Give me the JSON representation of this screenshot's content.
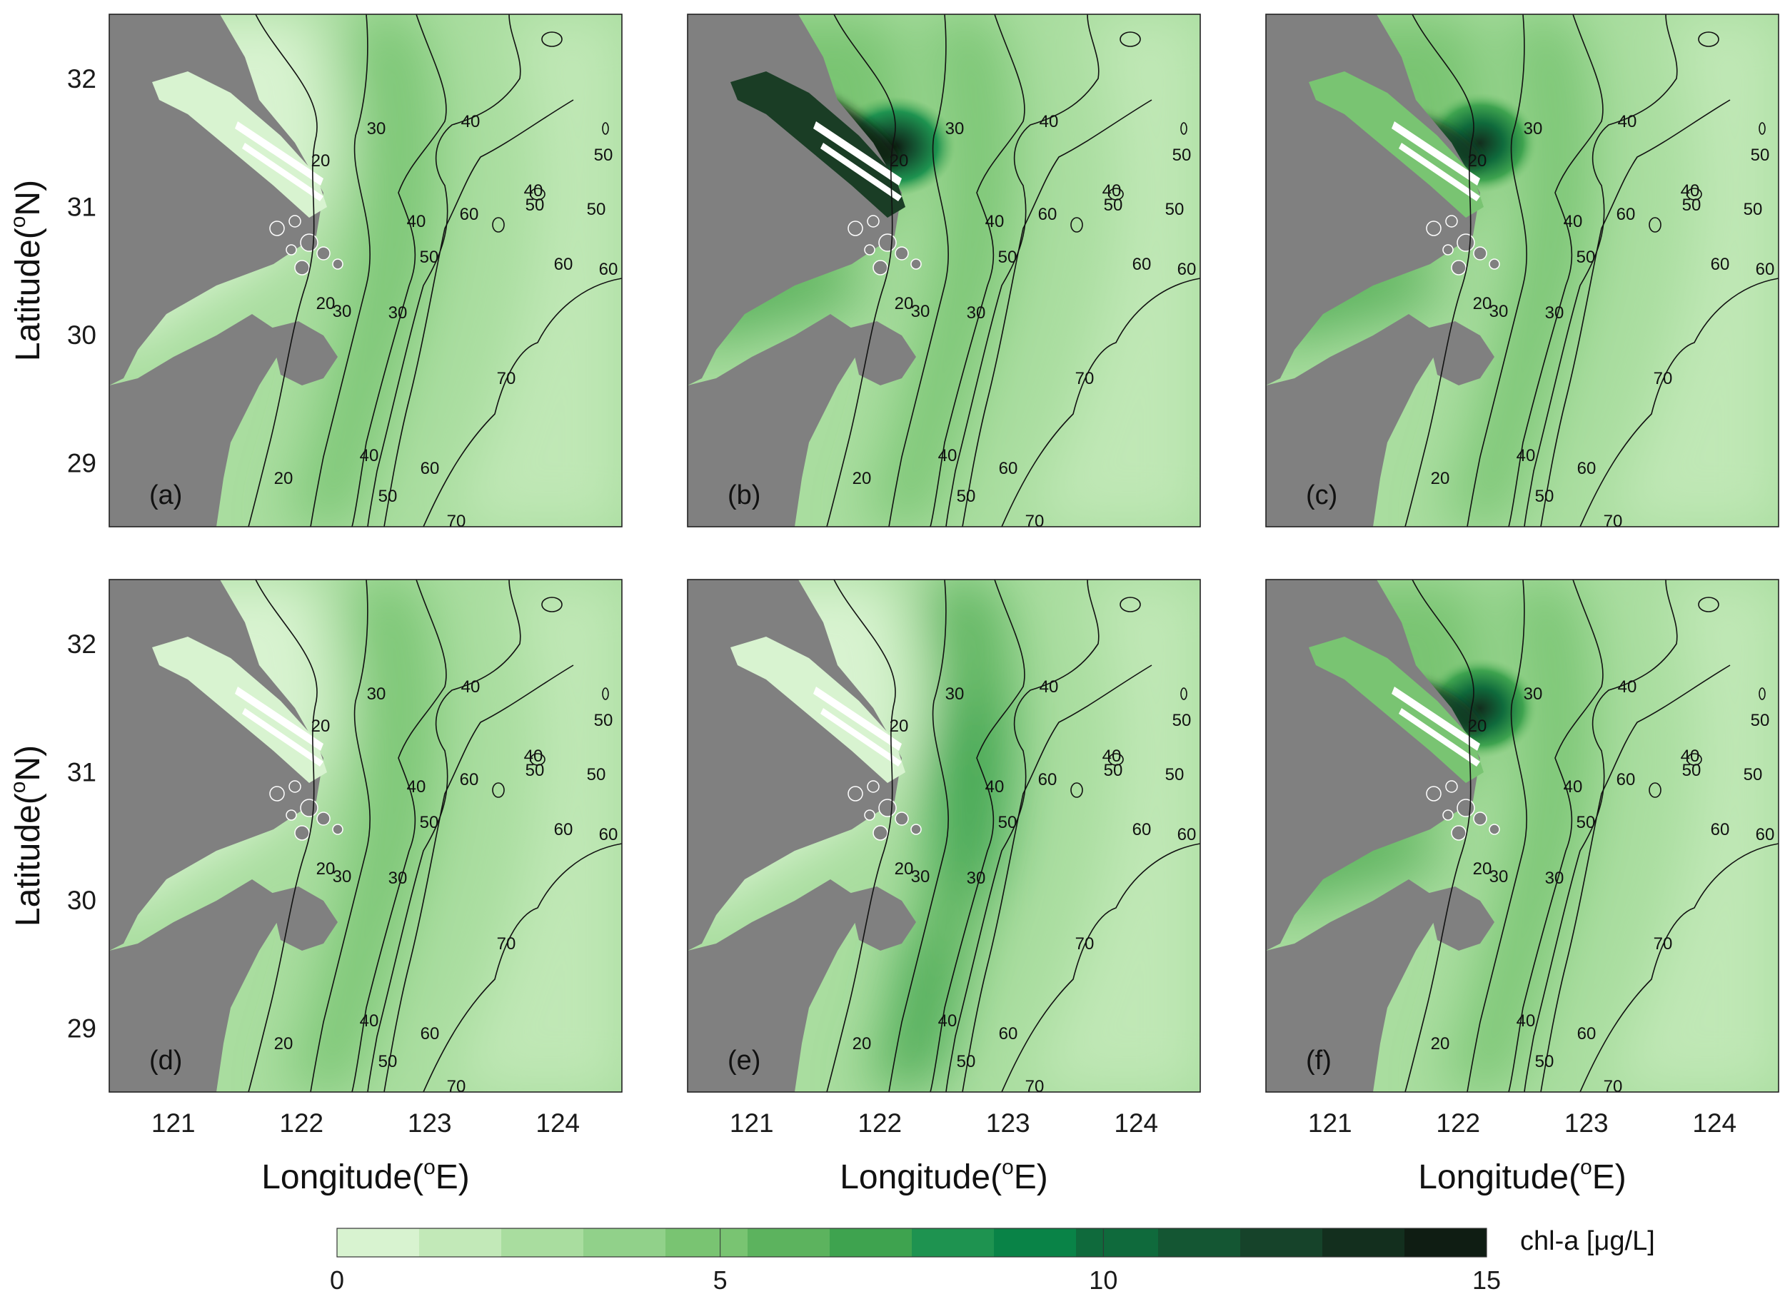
{
  "figure": {
    "panels": [
      {
        "id": "a",
        "label": "(a)",
        "variant": "low"
      },
      {
        "id": "b",
        "label": "(b)",
        "variant": "estuary-high"
      },
      {
        "id": "c",
        "label": "(c)",
        "variant": "estuary-mid"
      },
      {
        "id": "d",
        "label": "(d)",
        "variant": "low"
      },
      {
        "id": "e",
        "label": "(e)",
        "variant": "shelf-mid"
      },
      {
        "id": "f",
        "label": "(f)",
        "variant": "estuary-mid"
      }
    ],
    "x_ticks": [
      "121",
      "122",
      "123",
      "124"
    ],
    "y_ticks": [
      "32",
      "31",
      "30",
      "29"
    ],
    "x_range": [
      120.5,
      124.5
    ],
    "y_range": [
      28.5,
      32.5
    ],
    "xlabel": "Longitude(°E)",
    "xlabel_main": "Longitude(",
    "xlabel_sup": "o",
    "xlabel_end": "E)",
    "ylabel_main": "Latitude(",
    "ylabel_sup": "o",
    "ylabel_end": "N)",
    "isobaths": [
      "20",
      "30",
      "40",
      "50",
      "60",
      "70"
    ],
    "land_color": "#808080",
    "contour_color": "#111111"
  },
  "colorbar": {
    "label": "chl-a [μg/L]",
    "ticks": [
      "0",
      "5",
      "10",
      "15"
    ],
    "min": 0,
    "max": 15,
    "colors": [
      "#d8f3d0",
      "#c2e9b8",
      "#a9dd9f",
      "#91d18a",
      "#79c472",
      "#5cb35e",
      "#3ea34f",
      "#1e9350",
      "#098347",
      "#0f6a3c",
      "#145633",
      "#16432a",
      "#132f1e",
      "#0f1d13"
    ]
  }
}
